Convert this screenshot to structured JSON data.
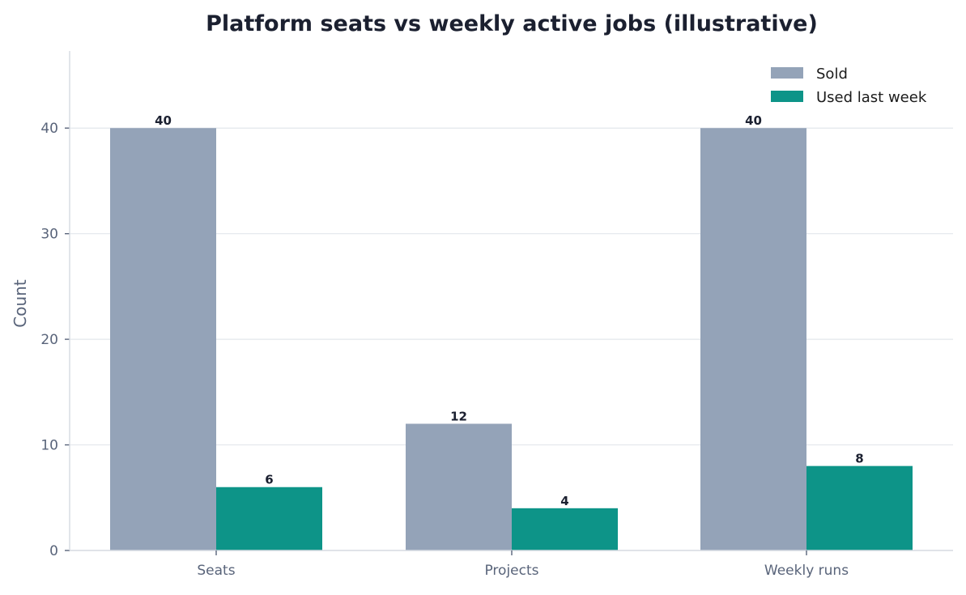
{
  "chart_data": {
    "type": "bar",
    "title": "Platform seats vs weekly active jobs (illustrative)",
    "xlabel": "",
    "ylabel": "Count",
    "categories": [
      "Seats",
      "Projects",
      "Weekly runs"
    ],
    "series": [
      {
        "name": "Sold",
        "values": [
          40,
          12,
          40
        ],
        "color": "#94a3b8"
      },
      {
        "name": "Used last week",
        "values": [
          6,
          4,
          8
        ],
        "color": "#0d9488"
      }
    ],
    "ylim": [
      0,
      47.3
    ],
    "yticks": [
      0,
      10,
      20,
      30,
      40
    ],
    "grid": "horizontal",
    "legend_position": "top-right"
  }
}
